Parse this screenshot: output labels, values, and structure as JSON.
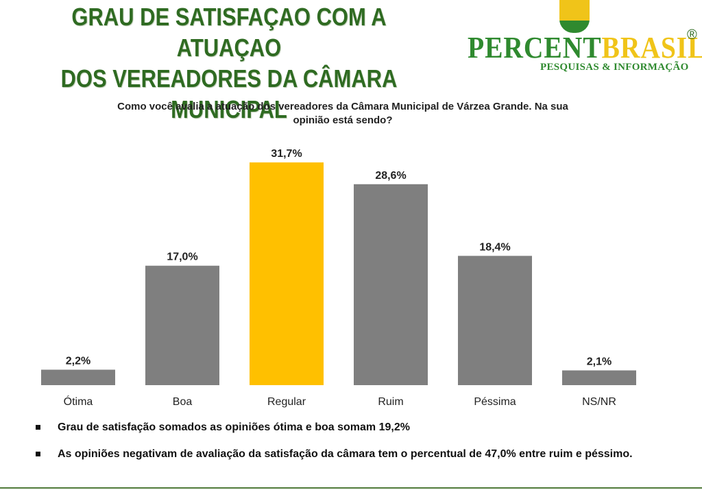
{
  "header": {
    "title_lines": [
      "GRAU DE SATISFAÇAO COM A ATUAÇAO",
      "DOS VEREADORES DA CÂMARA",
      "MUNICIPAL"
    ]
  },
  "logo": {
    "name_green": "PERCENT",
    "name_yellow": "BRASIL",
    "registered": "®",
    "tagline": "PESQUISAS & INFORMAÇÃO",
    "colors": {
      "green": "#2f8a2f",
      "yellow": "#f0c419"
    }
  },
  "question": {
    "line1": "Como você avalia a atuação dos vereadores da Câmara Municipal de Várzea Grande. Na sua",
    "line2": "opinião está sendo?"
  },
  "chart_data": {
    "type": "bar",
    "categories": [
      "Ótima",
      "Boa",
      "Regular",
      "Ruim",
      "Péssima",
      "NS/NR"
    ],
    "values": [
      2.2,
      17.0,
      31.7,
      28.6,
      18.4,
      2.1
    ],
    "value_labels": [
      "2,2%",
      "17,0%",
      "31,7%",
      "28,6%",
      "18,4%",
      "2,1%"
    ],
    "unit": "%",
    "ylim": [
      0,
      31.7
    ],
    "grid": false,
    "legend": "none",
    "bar_colors": [
      "#7f7f7f",
      "#7f7f7f",
      "#ffc000",
      "#7f7f7f",
      "#7f7f7f",
      "#7f7f7f"
    ]
  },
  "notes": [
    "Grau de satisfação somados as opiniões ótima e boa somam 19,2%",
    "As opiniões negativam de avaliação da satisfação da câmara tem o percentual de 47,0% entre ruim e péssimo."
  ]
}
